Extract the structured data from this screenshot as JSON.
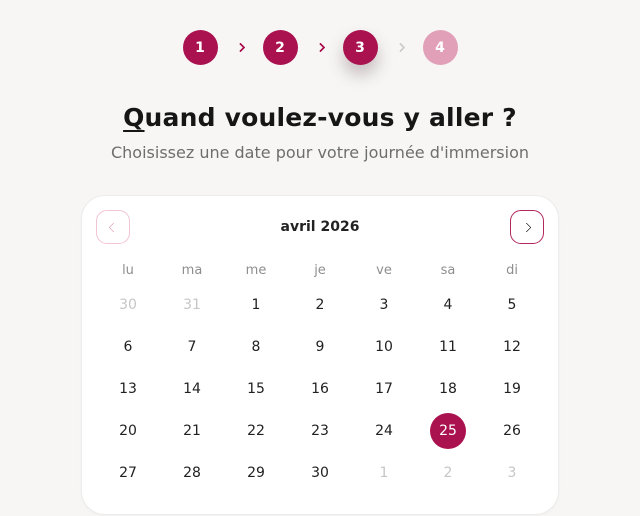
{
  "theme": {
    "accent": "#A9124F",
    "accent_light": "#E2A0B8",
    "separator_muted": "#CCCCCC",
    "page_background": "#F7F6F5",
    "selected_day_text": "#FFFFFF"
  },
  "stepper": {
    "steps": [
      {
        "label": "1",
        "state": "complete"
      },
      {
        "label": "2",
        "state": "complete"
      },
      {
        "label": "3",
        "state": "current"
      },
      {
        "label": "4",
        "state": "upcoming"
      }
    ]
  },
  "heading": {
    "lead": "Q",
    "rest": "uand voulez-vous y aller ?"
  },
  "subtitle": "Choisissez une date pour votre journée d'immersion",
  "calendar": {
    "month_label": "avril 2026",
    "icons": {
      "prev": "chevron-left",
      "next": "chevron-right"
    },
    "weekdays": [
      "lu",
      "ma",
      "me",
      "je",
      "ve",
      "sa",
      "di"
    ],
    "selected_day": "25",
    "days": [
      {
        "label": "30",
        "muted": true
      },
      {
        "label": "31",
        "muted": true
      },
      {
        "label": "1"
      },
      {
        "label": "2"
      },
      {
        "label": "3"
      },
      {
        "label": "4"
      },
      {
        "label": "5"
      },
      {
        "label": "6"
      },
      {
        "label": "7"
      },
      {
        "label": "8"
      },
      {
        "label": "9"
      },
      {
        "label": "10"
      },
      {
        "label": "11"
      },
      {
        "label": "12"
      },
      {
        "label": "13"
      },
      {
        "label": "14"
      },
      {
        "label": "15"
      },
      {
        "label": "16"
      },
      {
        "label": "17"
      },
      {
        "label": "18"
      },
      {
        "label": "19"
      },
      {
        "label": "20"
      },
      {
        "label": "21"
      },
      {
        "label": "22"
      },
      {
        "label": "23"
      },
      {
        "label": "24"
      },
      {
        "label": "25",
        "selected": true
      },
      {
        "label": "26"
      },
      {
        "label": "27"
      },
      {
        "label": "28"
      },
      {
        "label": "29"
      },
      {
        "label": "30"
      },
      {
        "label": "1",
        "muted": true
      },
      {
        "label": "2",
        "muted": true
      },
      {
        "label": "3",
        "muted": true
      }
    ]
  }
}
